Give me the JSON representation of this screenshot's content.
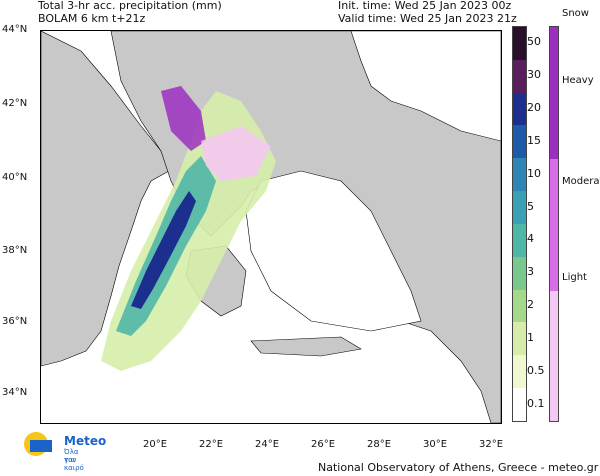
{
  "title_line1": "Total 3-hr acc. precipitation (mm)",
  "title_line2": "BOLAM 6 km t+21z",
  "init_time": "Init. time: Wed 25 Jan 2023 00z",
  "valid_time": "Valid time: Wed 25 Jan 2023 21z",
  "latitude_labels": [
    "44°N",
    "42°N",
    "40°N",
    "38°N",
    "36°N",
    "34°N"
  ],
  "longitude_labels": [
    "20°E",
    "22°E",
    "24°E",
    "26°E",
    "28°E",
    "30°E",
    "32°E"
  ],
  "precipitation_scale": {
    "labels": [
      "50",
      "30",
      "20",
      "15",
      "10",
      "5",
      "4",
      "3",
      "2",
      "1",
      "0.5",
      "0.1"
    ],
    "colors": [
      "#2a0f2c",
      "#5a1e5e",
      "#1c2f8f",
      "#1d5aa7",
      "#2f86b6",
      "#3aa1b5",
      "#4fb7a7",
      "#79c98f",
      "#a4d98a",
      "#d6edaa",
      "#f0f8cf",
      "#ffffff"
    ]
  },
  "snow_scale": {
    "title": "Snow",
    "labels": [
      "Heavy",
      "Moderate",
      "Light"
    ],
    "colors": [
      "#9c2fbf",
      "#d96ce8",
      "#f5c7f5"
    ]
  },
  "logo": {
    "name": "Meteo",
    "tagline_1": "Όλα για",
    "tagline_2": "τον καιρό"
  },
  "footer": "National Observatory of Athens, Greece - meteo.gr",
  "colors": {
    "land": "#c8c8c8",
    "sea": "#ffffff",
    "border": "#000000",
    "accent": "#1a63c9"
  }
}
